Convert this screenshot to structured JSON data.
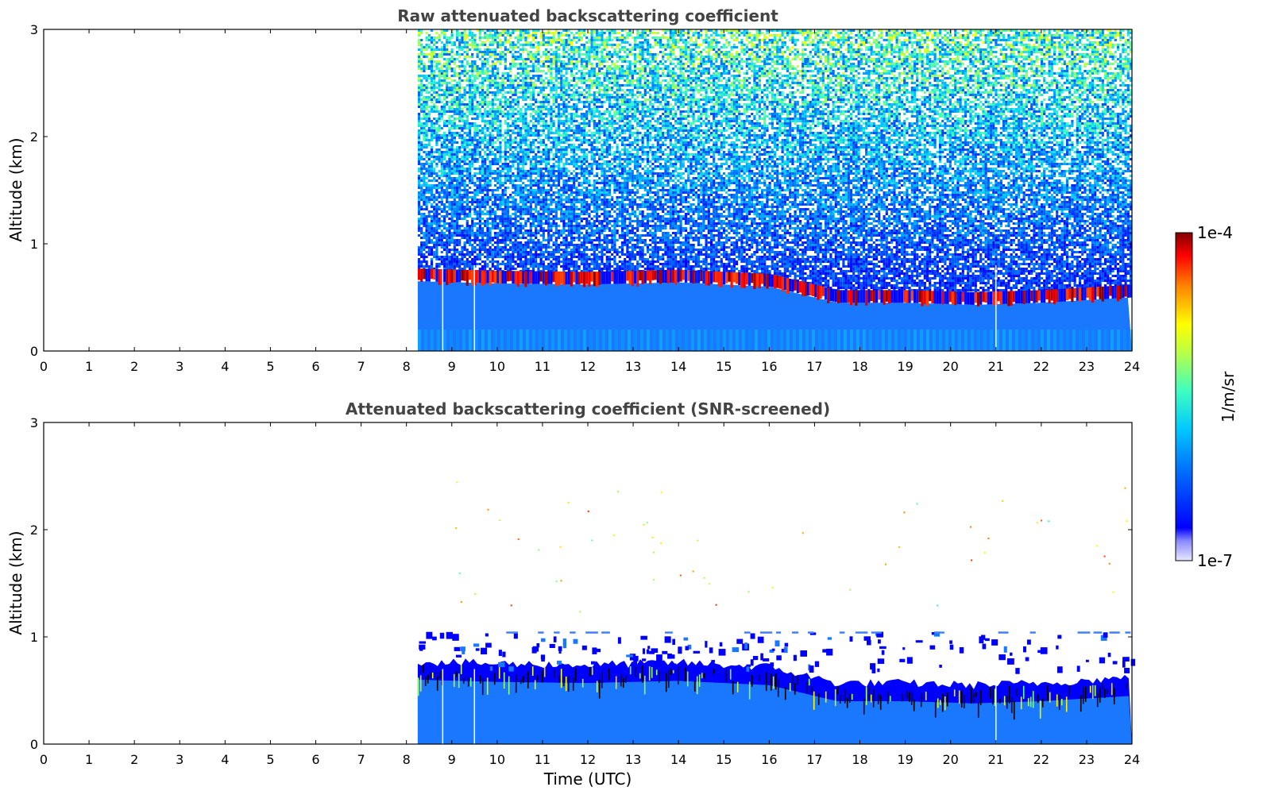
{
  "chart_data": [
    {
      "type": "heatmap",
      "title": "Raw attenuated backscattering coefficient",
      "xlabel": "",
      "ylabel": "Altitude (km)",
      "xlim": [
        0,
        24
      ],
      "ylim": [
        0,
        3
      ],
      "xticks": [
        "0",
        "1",
        "2",
        "3",
        "4",
        "5",
        "6",
        "7",
        "8",
        "9",
        "10",
        "11",
        "12",
        "13",
        "14",
        "15",
        "16",
        "17",
        "18",
        "19",
        "20",
        "21",
        "22",
        "23",
        "24"
      ],
      "yticks": [
        "0",
        "1",
        "2",
        "3"
      ],
      "data_start_time": 8.25,
      "gap_times": [
        8.8,
        9.5,
        21.0
      ],
      "boundary_layer_top_km": [
        {
          "t": 8.3,
          "z": 0.65
        },
        {
          "t": 10,
          "z": 0.63
        },
        {
          "t": 12,
          "z": 0.62
        },
        {
          "t": 14,
          "z": 0.64
        },
        {
          "t": 16,
          "z": 0.6
        },
        {
          "t": 17.5,
          "z": 0.45
        },
        {
          "t": 19,
          "z": 0.45
        },
        {
          "t": 20.5,
          "z": 0.43
        },
        {
          "t": 22,
          "z": 0.45
        },
        {
          "t": 24,
          "z": 0.5
        }
      ],
      "colorbar": {
        "min": "1e-7",
        "max": "1e-4",
        "label": "1/m/sr",
        "colormap": "jet"
      }
    },
    {
      "type": "heatmap",
      "title": "Attenuated backscattering coefficient (SNR-screened)",
      "xlabel": "Time (UTC)",
      "ylabel": "Altitude (km)",
      "xlim": [
        0,
        24
      ],
      "ylim": [
        0,
        3
      ],
      "xticks": [
        "0",
        "1",
        "2",
        "3",
        "4",
        "5",
        "6",
        "7",
        "8",
        "9",
        "10",
        "11",
        "12",
        "13",
        "14",
        "15",
        "16",
        "17",
        "18",
        "19",
        "20",
        "21",
        "22",
        "23",
        "24"
      ],
      "yticks": [
        "0",
        "1",
        "2",
        "3"
      ],
      "data_start_time": 8.25,
      "gap_times": [
        8.8,
        9.5,
        21.0
      ],
      "residual_layer_km": 1.05,
      "colorbar": {
        "min": "1e-7",
        "max": "1e-4",
        "label": "1/m/sr",
        "colormap": "jet"
      }
    }
  ]
}
